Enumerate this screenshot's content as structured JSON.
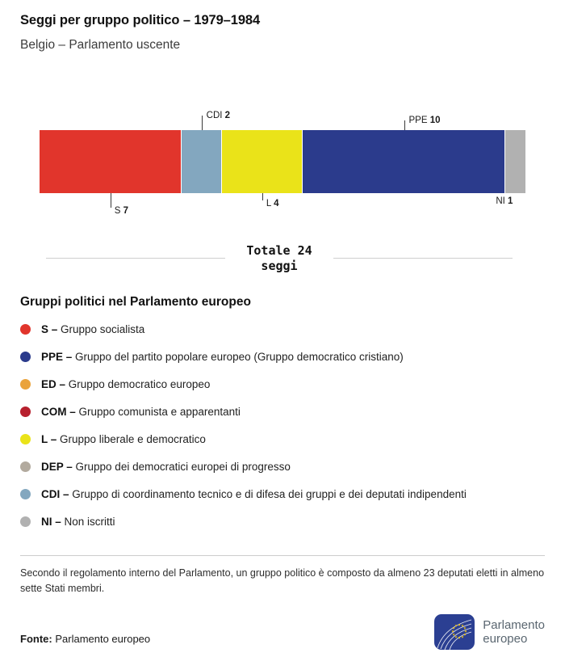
{
  "header": {
    "title": "Seggi per gruppo politico – 1979–1984",
    "subtitle": "Belgio – Parlamento uscente"
  },
  "chart_data": {
    "type": "bar",
    "title": "Seggi per gruppo politico – 1979–1984",
    "subtitle": "Belgio – Parlamento uscente",
    "total": 24,
    "total_line1": "Totale 24",
    "total_line2": "seggi",
    "segments": [
      {
        "code": "S",
        "seats": 7,
        "color": "#e1352c",
        "callout": {
          "side": "below",
          "line": 18,
          "align": "left"
        }
      },
      {
        "code": "CDI",
        "seats": 2,
        "color": "#83a7bf",
        "callout": {
          "side": "above",
          "line": 18,
          "align": "left"
        }
      },
      {
        "code": "L",
        "seats": 4,
        "color": "#eae319",
        "callout": {
          "side": "below",
          "line": 9,
          "align": "left"
        }
      },
      {
        "code": "PPE",
        "seats": 10,
        "color": "#2b3b8c",
        "callout": {
          "side": "above",
          "line": 12,
          "align": "left"
        }
      },
      {
        "code": "NI",
        "seats": 1,
        "color": "#b1b1b1",
        "callout": {
          "side": "below",
          "line": 0,
          "align": "right"
        }
      }
    ]
  },
  "legend": {
    "heading": "Gruppi politici nel Parlamento europeo",
    "separator": "–",
    "items": [
      {
        "code": "S",
        "color": "#e1352c",
        "label": "Gruppo socialista"
      },
      {
        "code": "PPE",
        "color": "#2b3b8c",
        "label": "Gruppo del partito popolare europeo (Gruppo democratico cristiano)"
      },
      {
        "code": "ED",
        "color": "#eaa33c",
        "label": "Gruppo democratico europeo"
      },
      {
        "code": "COM",
        "color": "#b7202e",
        "label": "Gruppo comunista e apparentanti"
      },
      {
        "code": "L",
        "color": "#eae319",
        "label": "Gruppo liberale e democratico"
      },
      {
        "code": "DEP",
        "color": "#b2aa9e",
        "label": "Gruppo dei democratici europei di progresso"
      },
      {
        "code": "CDI",
        "color": "#83a7bf",
        "label": "Gruppo di coordinamento tecnico e di difesa dei gruppi e dei deputati indipendenti"
      },
      {
        "code": "NI",
        "color": "#b1b1b1",
        "label": "Non iscritti"
      }
    ]
  },
  "footnote": "Secondo il regolamento interno del Parlamento, un gruppo politico è composto da almeno 23 deputati eletti in almeno sette Stati membri.",
  "source": {
    "label": "Fonte:",
    "text": "Parlamento europeo"
  },
  "logo": {
    "line1": "Parlamento",
    "line2": "europeo"
  }
}
